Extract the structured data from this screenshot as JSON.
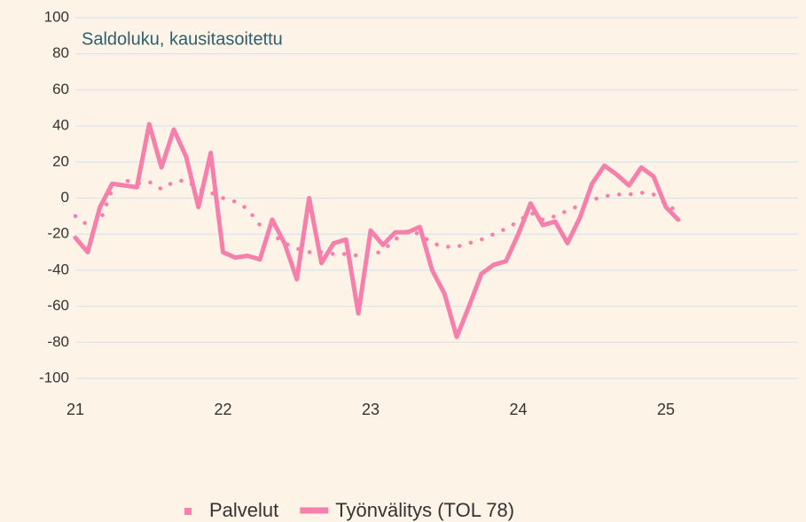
{
  "chart_data": {
    "type": "line",
    "title": "Saldoluku, kausitasoitettu",
    "categories": [
      "21",
      null,
      null,
      null,
      null,
      null,
      null,
      null,
      null,
      null,
      null,
      null,
      "22",
      null,
      null,
      null,
      null,
      null,
      null,
      null,
      null,
      null,
      null,
      null,
      "23",
      null,
      null,
      null,
      null,
      null,
      null,
      null,
      null,
      null,
      null,
      null,
      "24",
      null,
      null,
      null,
      null,
      null,
      null,
      null,
      null,
      null,
      null,
      null,
      "25",
      null,
      null,
      null,
      null,
      null,
      null,
      null,
      null,
      null,
      null,
      null
    ],
    "series": [
      {
        "name": "Palvelut",
        "color": "#f77fab",
        "style": "dotted",
        "values": [
          -10,
          -15,
          -13,
          5,
          10,
          8,
          9,
          5,
          9,
          10,
          5,
          3,
          0,
          -2,
          -6,
          -15,
          -20,
          -25,
          -28,
          -30,
          -30,
          -31,
          -31,
          -32,
          -32,
          -29,
          -23,
          -18,
          -20,
          -25,
          -27,
          -27,
          -25,
          -23,
          -20,
          -17,
          -13,
          -8,
          -12,
          -10,
          -7,
          -4,
          -1,
          1,
          2,
          2,
          3,
          2,
          -3,
          -8,
          null,
          null,
          null,
          null,
          null,
          null,
          null,
          null,
          null,
          null
        ]
      },
      {
        "name": "Työnvälitys (TOL 78)",
        "color": "#f77fab",
        "style": "solid",
        "values": [
          -22,
          -30,
          -5,
          8,
          7,
          6,
          41,
          17,
          38,
          23,
          -5,
          25,
          -30,
          -33,
          -32,
          -34,
          -12,
          -25,
          -45,
          0,
          -36,
          -25,
          -23,
          -64,
          -18,
          -26,
          -19,
          -19,
          -16,
          -40,
          -53,
          -77,
          -60,
          -42,
          -37,
          -35,
          -20,
          -3,
          -15,
          -13,
          -25,
          -11,
          8,
          18,
          13,
          7,
          17,
          12,
          -5,
          -12,
          null,
          null,
          null,
          null,
          null,
          null,
          null,
          null,
          null,
          null
        ]
      }
    ],
    "ylim": [
      -100,
      100
    ],
    "yticks": [
      -100,
      -80,
      -60,
      -40,
      -20,
      0,
      20,
      40,
      60,
      80,
      100
    ],
    "grid": true,
    "legend": "bottom"
  }
}
